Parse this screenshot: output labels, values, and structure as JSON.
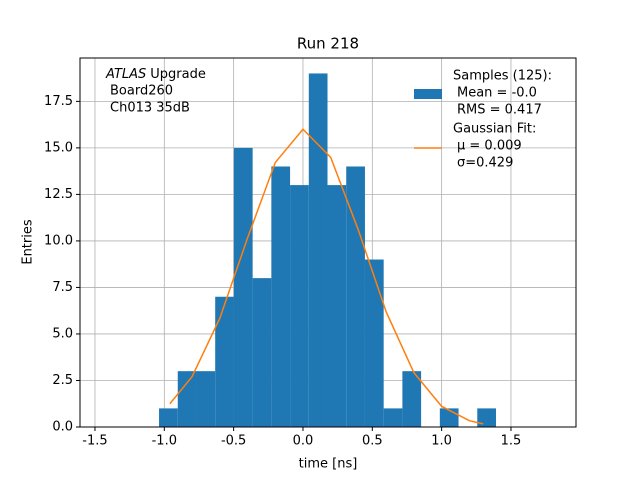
{
  "chart_data": {
    "type": "histogram",
    "title": "Run 218",
    "xlabel": "time [ns]",
    "ylabel": "Entries",
    "annotation": {
      "emphasis": "ATLAS",
      "text": "Upgrade",
      "lines": [
        "Board260",
        "Ch013 35dB"
      ]
    },
    "bins": [
      -1.038,
      -0.903,
      -0.768,
      -0.633,
      -0.498,
      -0.363,
      -0.228,
      -0.093,
      0.042,
      0.177,
      0.312,
      0.447,
      0.582,
      0.717,
      0.852,
      0.987,
      1.122,
      1.257,
      1.392
    ],
    "series": [
      {
        "name": "Samples (125):",
        "details": [
          "Mean = -0.0",
          "RMS = 0.417"
        ],
        "color": "#1f77b4",
        "values": [
          1,
          3,
          3,
          7,
          15,
          8,
          14,
          13,
          19,
          13,
          14,
          9,
          1,
          3,
          0,
          1,
          0,
          1
        ]
      },
      {
        "name": "Gaussian Fit:",
        "details": [
          "μ = 0.009",
          "σ=0.429"
        ],
        "color": "#ff7f0e",
        "x": [
          -0.96,
          -0.8,
          -0.6,
          -0.4,
          -0.2,
          0,
          0.2,
          0.4,
          0.6,
          0.8,
          1.0,
          1.2,
          1.3
        ],
        "values": [
          1.25,
          2.7,
          5.84,
          10.15,
          14.21,
          16.0,
          14.49,
          10.57,
          6.19,
          2.92,
          1.11,
          0.34,
          0.17
        ]
      }
    ],
    "xlim": [
      -1.608,
      1.969
    ],
    "ylim": [
      0,
      19.83
    ],
    "xticks": [
      -1.5,
      {
        "value": -1,
        "label": "-1.0"
      },
      -0.5,
      {
        "value": 0,
        "label": "0.0"
      },
      0.5,
      {
        "value": 1,
        "label": "1.0"
      },
      1.5
    ],
    "yticks": [
      {
        "value": 0,
        "label": "0.0"
      },
      2.5,
      {
        "value": 5,
        "label": "5.0"
      },
      7.5,
      {
        "value": 10,
        "label": "10.0"
      },
      12.5,
      {
        "value": 15,
        "label": "15.0"
      },
      17.5
    ],
    "grid": true
  }
}
